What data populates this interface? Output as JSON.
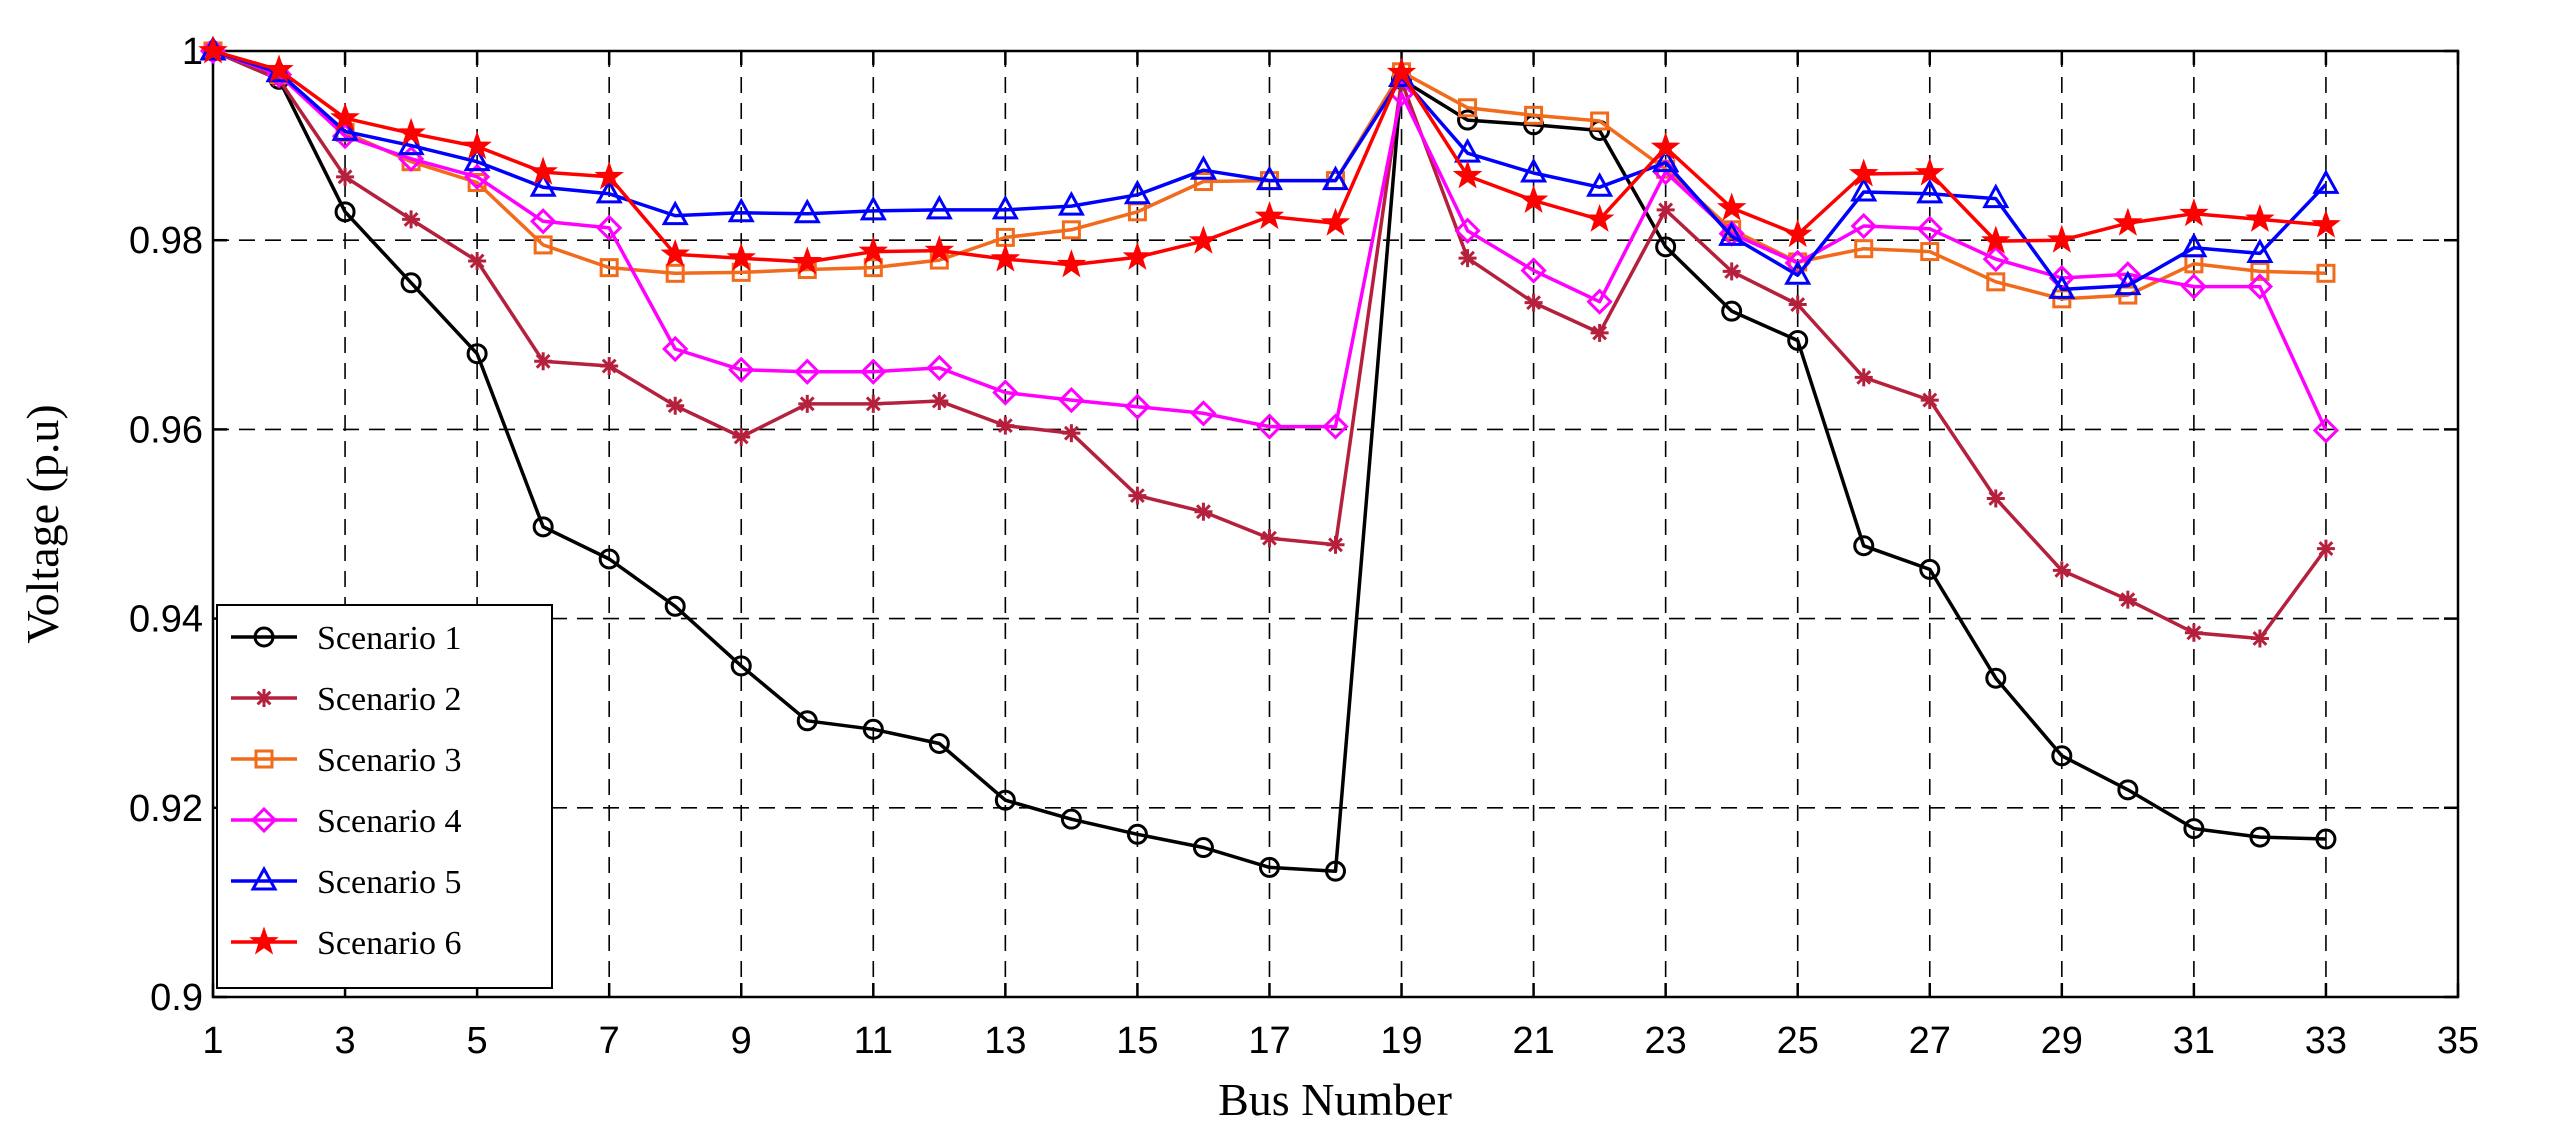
{
  "chart_data": {
    "type": "line",
    "xlabel": "Bus Number",
    "ylabel": "Voltage (p.u)",
    "xlim": [
      1,
      35
    ],
    "ylim": [
      0.9,
      1.0
    ],
    "xticks": [
      "1",
      "3",
      "5",
      "7",
      "9",
      "11",
      "13",
      "15",
      "17",
      "19",
      "21",
      "23",
      "25",
      "27",
      "29",
      "31",
      "33",
      "35"
    ],
    "yticks": [
      "0.9",
      "0.92",
      "0.94",
      "0.96",
      "0.98",
      "1"
    ],
    "grid": true,
    "legend_position": "bottom-left",
    "x": [
      1,
      2,
      3,
      4,
      5,
      6,
      7,
      8,
      9,
      10,
      11,
      12,
      13,
      14,
      15,
      16,
      17,
      18,
      19,
      20,
      21,
      22,
      23,
      24,
      25,
      26,
      27,
      28,
      29,
      30,
      31,
      32,
      33
    ],
    "series": [
      {
        "name": "Scenario 1",
        "color": "#000000",
        "marker": "circle",
        "values": [
          1.0,
          0.997,
          0.983,
          0.9755,
          0.968,
          0.9497,
          0.9463,
          0.9413,
          0.935,
          0.9292,
          0.9283,
          0.9268,
          0.9208,
          0.9188,
          0.9172,
          0.9158,
          0.9137,
          0.9133,
          0.997,
          0.9927,
          0.9922,
          0.9916,
          0.9793,
          0.9725,
          0.9694,
          0.9477,
          0.9452,
          0.9337,
          0.9255,
          0.9219,
          0.9178,
          0.9169,
          0.9167
        ]
      },
      {
        "name": "Scenario 2",
        "color": "#B5203C",
        "marker": "asterisk",
        "values": [
          1.0,
          0.997,
          0.9867,
          0.9822,
          0.9778,
          0.9672,
          0.9667,
          0.9625,
          0.9592,
          0.9627,
          0.9627,
          0.963,
          0.9604,
          0.9596,
          0.953,
          0.9513,
          0.9485,
          0.9478,
          0.9968,
          0.9781,
          0.9734,
          0.9702,
          0.9832,
          0.9767,
          0.9732,
          0.9655,
          0.9631,
          0.9527,
          0.9451,
          0.942,
          0.9385,
          0.9379,
          0.9474
        ]
      },
      {
        "name": "Scenario 3",
        "color": "#F26A1B",
        "marker": "square",
        "values": [
          1.0,
          0.9975,
          0.9914,
          0.9883,
          0.9861,
          0.9795,
          0.9771,
          0.9765,
          0.9766,
          0.9769,
          0.9771,
          0.9779,
          0.9803,
          0.9811,
          0.983,
          0.9862,
          0.9863,
          0.9863,
          0.9978,
          0.994,
          0.9932,
          0.9926,
          0.9875,
          0.9811,
          0.9777,
          0.9791,
          0.9788,
          0.9756,
          0.9738,
          0.9742,
          0.9775,
          0.9767,
          0.9765
        ]
      },
      {
        "name": "Scenario 4",
        "color": "#FF00FF",
        "marker": "diamond",
        "values": [
          1.0,
          0.9975,
          0.991,
          0.9886,
          0.9867,
          0.982,
          0.9813,
          0.9685,
          0.9663,
          0.9661,
          0.9661,
          0.9665,
          0.9639,
          0.9631,
          0.9624,
          0.9617,
          0.9603,
          0.9603,
          0.9955,
          0.981,
          0.9768,
          0.9735,
          0.9872,
          0.9807,
          0.9776,
          0.9815,
          0.9812,
          0.978,
          0.976,
          0.9764,
          0.9751,
          0.9751,
          0.9599
        ]
      },
      {
        "name": "Scenario 5",
        "color": "#0000FF",
        "marker": "triangle",
        "values": [
          1.0,
          0.9977,
          0.9915,
          0.99,
          0.9883,
          0.9856,
          0.9849,
          0.9826,
          0.9829,
          0.9828,
          0.9831,
          0.9832,
          0.9832,
          0.9836,
          0.9848,
          0.9874,
          0.9863,
          0.9863,
          0.9972,
          0.9892,
          0.9871,
          0.9856,
          0.9882,
          0.9804,
          0.9763,
          0.9851,
          0.9849,
          0.9844,
          0.9748,
          0.9752,
          0.9792,
          0.9786,
          0.9859
        ]
      },
      {
        "name": "Scenario 6",
        "color": "#FF0000",
        "marker": "star",
        "values": [
          1.0,
          0.998,
          0.9929,
          0.9913,
          0.9899,
          0.9872,
          0.9867,
          0.9785,
          0.9781,
          0.9777,
          0.9788,
          0.9789,
          0.978,
          0.9774,
          0.9782,
          0.9799,
          0.9825,
          0.9818,
          0.9977,
          0.9868,
          0.9842,
          0.9822,
          0.9898,
          0.9834,
          0.9806,
          0.987,
          0.9871,
          0.9799,
          0.98,
          0.9818,
          0.9828,
          0.9822,
          0.9816
        ]
      }
    ]
  }
}
